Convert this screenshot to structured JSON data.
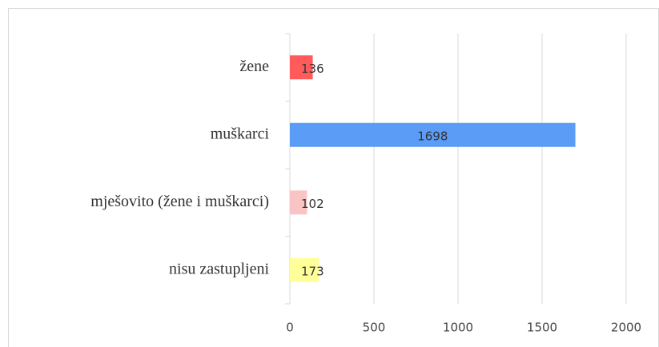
{
  "chart_data": {
    "type": "bar",
    "orientation": "horizontal",
    "categories": [
      "žene",
      "muškarci",
      "mješovito (žene i muškarci)",
      "nisu zastupljeni"
    ],
    "values": [
      136,
      1698,
      102,
      173
    ],
    "colors": [
      "#ff5b5b",
      "#5b9cf6",
      "#fbc4c4",
      "#ffff99"
    ],
    "xlim": [
      0,
      2000
    ],
    "xticks": [
      0,
      500,
      1000,
      1500,
      2000
    ],
    "grid": true
  }
}
